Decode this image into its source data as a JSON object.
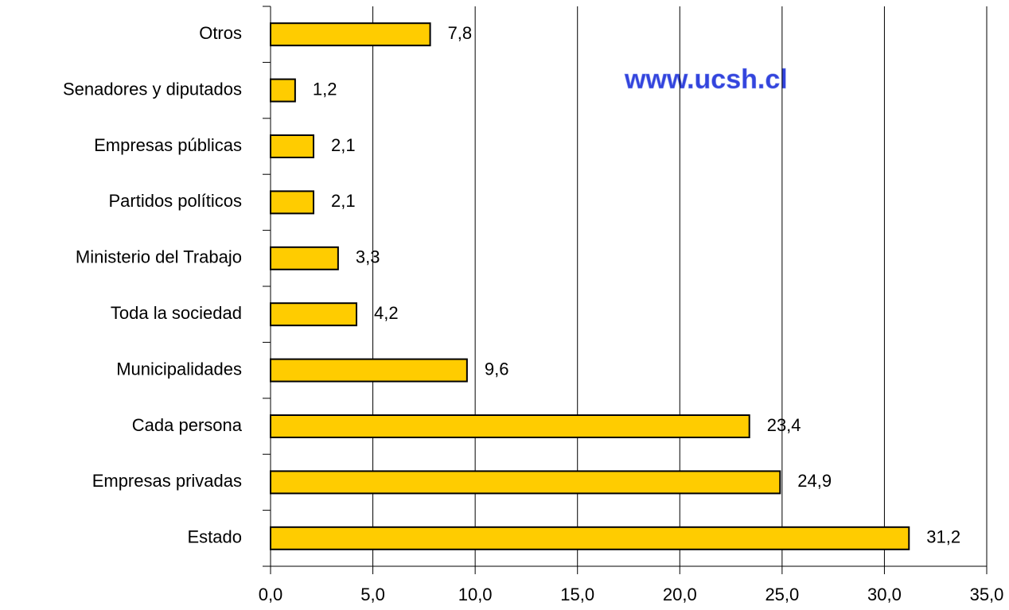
{
  "chart_data": {
    "type": "hbar",
    "categories": [
      "Otros",
      "Senadores y diputados",
      "Empresas públicas",
      "Partidos políticos",
      "Ministerio del Trabajo",
      "Toda la sociedad",
      "Municipalidades",
      "Cada persona",
      "Empresas privadas",
      "Estado"
    ],
    "values": [
      7.8,
      1.2,
      2.1,
      2.1,
      3.3,
      4.2,
      9.6,
      23.4,
      24.9,
      31.2
    ],
    "value_labels": [
      "7,8",
      "1,2",
      "2,1",
      "2,1",
      "3,3",
      "4,2",
      "9,6",
      "23,4",
      "24,9",
      "31,2"
    ],
    "color": "#ffcc00",
    "xlim": [
      0,
      35
    ],
    "xticks": [
      {
        "value": 0,
        "label": "0,0"
      },
      {
        "value": 5,
        "label": "5,0"
      },
      {
        "value": 10,
        "label": "10,0"
      },
      {
        "value": 15,
        "label": "15,0"
      },
      {
        "value": 20,
        "label": "20,0"
      },
      {
        "value": 25,
        "label": "25,0"
      },
      {
        "value": 30,
        "label": "30,0"
      },
      {
        "value": 35,
        "label": "35,0"
      }
    ],
    "grid": true,
    "annotations": [
      "www.ucsh.cl"
    ]
  }
}
